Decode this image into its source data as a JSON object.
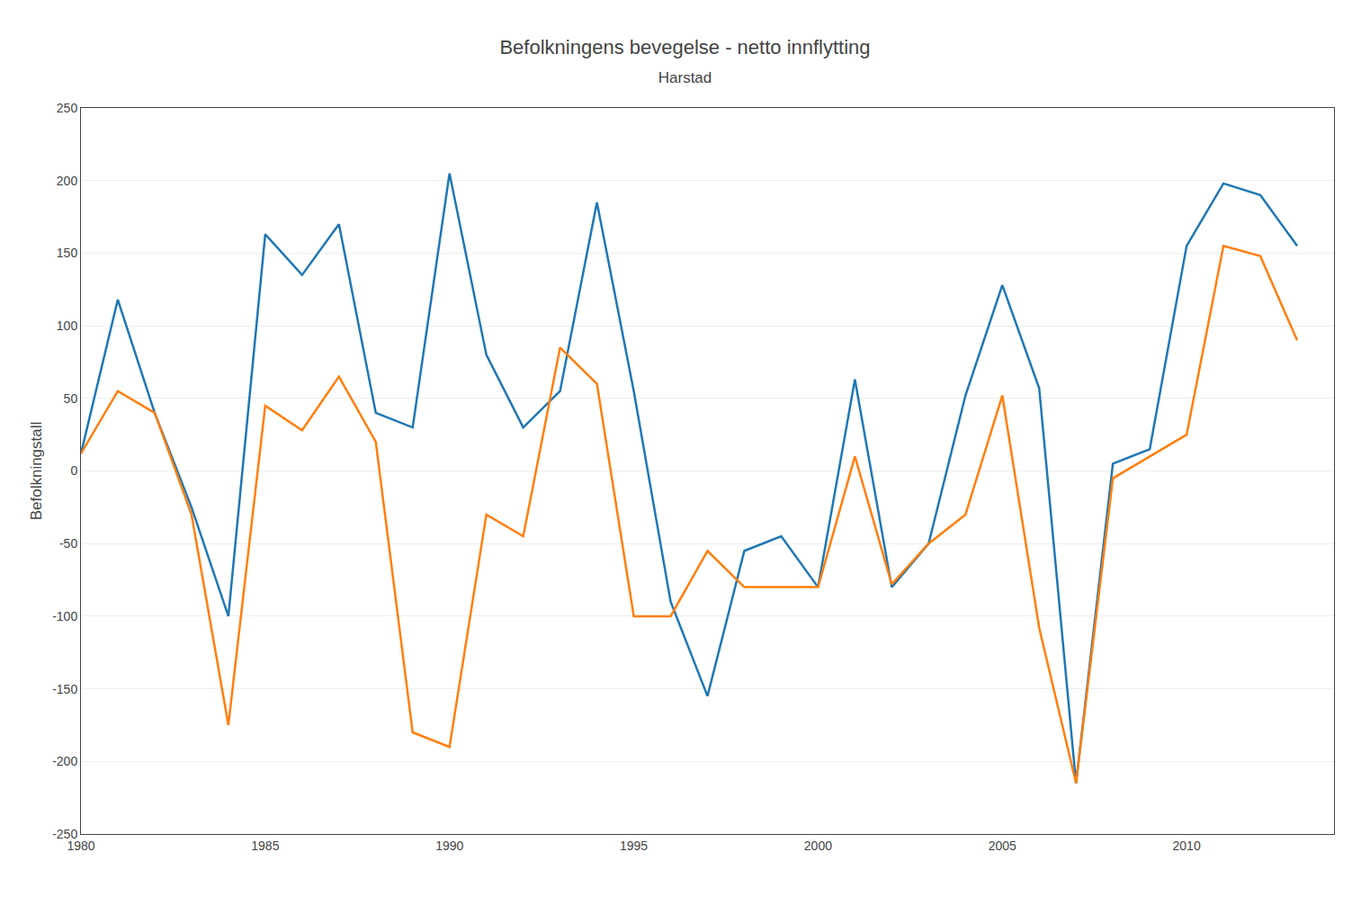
{
  "chart_data": {
    "type": "line",
    "title": "Befolkningens bevegelse - netto innflytting",
    "subtitle": "Harstad",
    "y_label": "Befolkningstall",
    "x": [
      1980,
      1981,
      1982,
      1983,
      1984,
      1985,
      1986,
      1987,
      1988,
      1989,
      1990,
      1991,
      1992,
      1993,
      1994,
      1995,
      1996,
      1997,
      1998,
      1999,
      2000,
      2001,
      2002,
      2003,
      2004,
      2005,
      2006,
      2007,
      2008,
      2009,
      2010,
      2011,
      2012,
      2013
    ],
    "series": [
      {
        "values": [
          12,
          118,
          40,
          -25,
          -100,
          163,
          135,
          170,
          40,
          30,
          205,
          80,
          30,
          55,
          185,
          55,
          -90,
          -155,
          -55,
          -45,
          -80,
          63,
          -80,
          -50,
          52,
          128,
          57,
          -215,
          5,
          15,
          155,
          198,
          190,
          155
        ]
      },
      {
        "values": [
          12,
          55,
          40,
          -30,
          -175,
          45,
          28,
          65,
          20,
          -180,
          -190,
          -30,
          -45,
          85,
          60,
          -100,
          -100,
          -55,
          -80,
          -80,
          -80,
          10,
          -78,
          -50,
          -30,
          52,
          -108,
          -215,
          -5,
          10,
          25,
          155,
          148,
          90
        ]
      }
    ],
    "xlim": [
      1980,
      2014
    ],
    "xticks": [
      1980,
      1985,
      1990,
      1995,
      2000,
      2005,
      2010
    ],
    "ylim": [
      -250,
      250
    ],
    "yticks": [
      -250,
      -200,
      -150,
      -100,
      -50,
      0,
      50,
      100,
      150,
      200,
      250
    ],
    "grid": "y"
  }
}
